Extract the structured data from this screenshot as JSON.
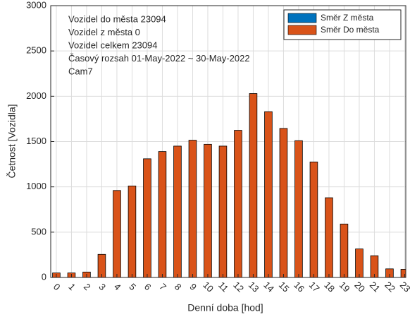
{
  "chart_data": {
    "type": "bar",
    "stacked": true,
    "annotations": [
      "Vozidel do města 23094",
      "Vozidel z města 0",
      "Vozidel celkem 23094",
      "Časový rozsah 01-May-2022 ~ 30-May-2022",
      "Cam7"
    ],
    "xlabel": "Denní doba [hod]",
    "ylabel": "Četnost [Vozidla]",
    "categories": [
      "0",
      "1",
      "2",
      "3",
      "4",
      "5",
      "6",
      "7",
      "8",
      "9",
      "10",
      "11",
      "12",
      "13",
      "14",
      "15",
      "16",
      "17",
      "18",
      "19",
      "20",
      "21",
      "22",
      "23"
    ],
    "series": [
      {
        "name": "Směr Z města",
        "color": "#0072bd",
        "values": [
          0,
          0,
          0,
          0,
          0,
          0,
          0,
          0,
          0,
          0,
          0,
          0,
          0,
          0,
          0,
          0,
          0,
          0,
          0,
          0,
          0,
          0,
          0,
          0
        ]
      },
      {
        "name": "Směr Do města",
        "color": "#d95319",
        "values": [
          50,
          50,
          60,
          255,
          960,
          1010,
          1310,
          1390,
          1450,
          1515,
          1470,
          1450,
          1624,
          2030,
          1830,
          1645,
          1510,
          1275,
          880,
          590,
          315,
          240,
          95,
          90
        ]
      }
    ],
    "ylim": [
      0,
      3000
    ],
    "yticks": [
      0,
      500,
      1000,
      1500,
      2000,
      2500,
      3000
    ],
    "grid": true,
    "legend": "northeast"
  }
}
